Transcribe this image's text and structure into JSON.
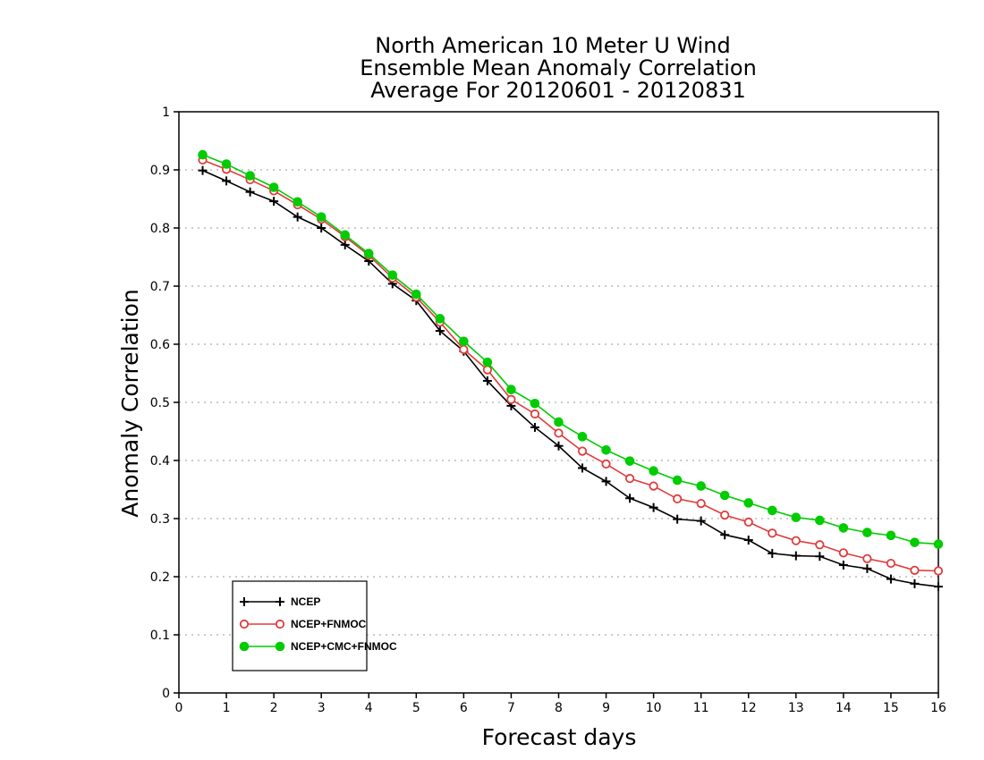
{
  "chart_data": {
    "type": "line",
    "title_lines": [
      "North American 10 Meter U Wind",
      "Ensemble Mean Anomaly Correlation",
      "Average For 20120601 - 20120831"
    ],
    "xlabel": "Forecast days",
    "ylabel": "Anomaly Correlation",
    "xlim": [
      0,
      16
    ],
    "ylim": [
      0,
      1
    ],
    "xticks": [
      "0",
      "1",
      "2",
      "3",
      "4",
      "5",
      "6",
      "7",
      "8",
      "9",
      "10",
      "11",
      "12",
      "13",
      "14",
      "15",
      "16"
    ],
    "yticks": [
      "0",
      "0.1",
      "0.2",
      "0.3",
      "0.4",
      "0.5",
      "0.6",
      "0.7",
      "0.8",
      "0.9",
      "1"
    ],
    "grid": true,
    "legend_position": "bottom-left",
    "x": [
      0.5,
      1,
      1.5,
      2,
      2.5,
      3,
      3.5,
      4,
      4.5,
      5,
      5.5,
      6,
      6.5,
      7,
      7.5,
      8,
      8.5,
      9,
      9.5,
      10,
      10.5,
      11,
      11.5,
      12,
      12.5,
      13,
      13.5,
      14,
      14.5,
      15,
      15.5,
      16
    ],
    "series": [
      {
        "name": "NCEP",
        "color": "#000000",
        "marker": "plus",
        "values": [
          0.899,
          0.881,
          0.862,
          0.846,
          0.819,
          0.8,
          0.771,
          0.743,
          0.704,
          0.675,
          0.623,
          0.588,
          0.537,
          0.494,
          0.457,
          0.425,
          0.387,
          0.364,
          0.335,
          0.319,
          0.299,
          0.296,
          0.272,
          0.263,
          0.24,
          0.236,
          0.235,
          0.22,
          0.214,
          0.196,
          0.188,
          0.183
        ]
      },
      {
        "name": "NCEP+FNMOC",
        "color": "#e03c3c",
        "marker": "open-circle",
        "values": [
          0.917,
          0.901,
          0.883,
          0.864,
          0.84,
          0.815,
          0.785,
          0.753,
          0.714,
          0.681,
          0.638,
          0.591,
          0.556,
          0.505,
          0.48,
          0.447,
          0.416,
          0.394,
          0.369,
          0.356,
          0.334,
          0.326,
          0.306,
          0.294,
          0.275,
          0.262,
          0.255,
          0.241,
          0.231,
          0.223,
          0.211,
          0.21
        ]
      },
      {
        "name": "NCEP+CMC+FNMOC",
        "color": "#00cc00",
        "marker": "filled-circle",
        "values": [
          0.926,
          0.91,
          0.89,
          0.87,
          0.845,
          0.819,
          0.788,
          0.756,
          0.719,
          0.686,
          0.644,
          0.605,
          0.569,
          0.522,
          0.498,
          0.466,
          0.441,
          0.418,
          0.399,
          0.382,
          0.366,
          0.356,
          0.34,
          0.327,
          0.314,
          0.302,
          0.297,
          0.284,
          0.276,
          0.271,
          0.259,
          0.256
        ]
      }
    ]
  }
}
